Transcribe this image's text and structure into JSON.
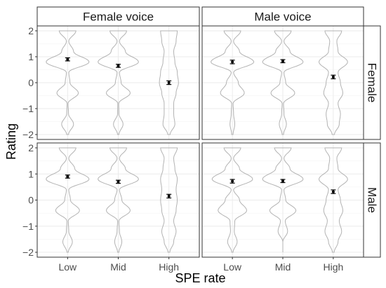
{
  "chart_data": {
    "type": "violin",
    "xlabel": "SPE rate",
    "ylabel": "Rating",
    "categories": [
      "Low",
      "Mid",
      "High"
    ],
    "ylim": [
      -2,
      2
    ],
    "yticks": [
      -2,
      -1,
      0,
      1,
      2
    ],
    "grid": true,
    "facet_cols": [
      "Female voice",
      "Male voice"
    ],
    "facet_rows": [
      "Female",
      "Male"
    ],
    "colors": {
      "violin": "#b3b3b3",
      "point": "#000000",
      "strip_bg": "#ffffff",
      "grid": "#ebebeb"
    },
    "panels": [
      {
        "col": "Female voice",
        "row": "Female",
        "means": [
          0.9,
          0.65,
          0.0
        ],
        "se": [
          0.06,
          0.06,
          0.07
        ],
        "density": [
          [
            0.04,
            0.25,
            0.04,
            0.02,
            0.45,
            0.1,
            0.05,
            0.9,
            0.25,
            0.05,
            0.35
          ],
          [
            0.03,
            0.2,
            0.03,
            0.02,
            0.5,
            0.12,
            0.05,
            0.85,
            0.3,
            0.05,
            0.35
          ],
          [
            0.05,
            0.25,
            0.2,
            0.2,
            0.3,
            0.4,
            0.35,
            0.25,
            0.2,
            0.3,
            0.35
          ]
        ]
      },
      {
        "col": "Male voice",
        "row": "Female",
        "means": [
          0.8,
          0.83,
          0.22
        ],
        "se": [
          0.07,
          0.06,
          0.07
        ],
        "density": [
          [
            0.03,
            0.1,
            0.05,
            0.03,
            0.5,
            0.25,
            0.05,
            0.9,
            0.3,
            0.05,
            0.35
          ],
          [
            0.03,
            0.15,
            0.05,
            0.03,
            0.5,
            0.12,
            0.05,
            0.85,
            0.3,
            0.05,
            0.35
          ],
          [
            0.05,
            0.25,
            0.3,
            0.2,
            0.4,
            0.3,
            0.2,
            0.6,
            0.2,
            0.15,
            0.35
          ]
        ]
      },
      {
        "col": "Female voice",
        "row": "Male",
        "means": [
          0.9,
          0.7,
          0.15
        ],
        "se": [
          0.06,
          0.06,
          0.07
        ],
        "density": [
          [
            0.03,
            0.2,
            0.05,
            0.03,
            0.5,
            0.12,
            0.05,
            0.9,
            0.3,
            0.05,
            0.35
          ],
          [
            0.03,
            0.15,
            0.05,
            0.03,
            0.5,
            0.15,
            0.05,
            0.85,
            0.3,
            0.05,
            0.35
          ],
          [
            0.04,
            0.2,
            0.3,
            0.2,
            0.3,
            0.35,
            0.3,
            0.35,
            0.25,
            0.2,
            0.35
          ]
        ]
      },
      {
        "col": "Male voice",
        "row": "Male",
        "means": [
          0.72,
          0.73,
          0.32
        ],
        "se": [
          0.07,
          0.06,
          0.07
        ],
        "density": [
          [
            0.03,
            0.2,
            0.08,
            0.1,
            0.6,
            0.3,
            0.05,
            0.85,
            0.3,
            0.05,
            0.35
          ],
          [
            0.0,
            0.0,
            0.2,
            0.1,
            0.55,
            0.12,
            0.05,
            0.85,
            0.3,
            0.05,
            0.35
          ],
          [
            0.04,
            0.2,
            0.35,
            0.25,
            0.4,
            0.3,
            0.2,
            0.6,
            0.2,
            0.15,
            0.35
          ]
        ]
      }
    ]
  }
}
